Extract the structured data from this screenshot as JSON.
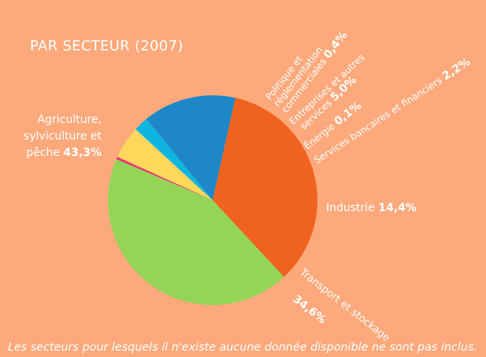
{
  "chart_data": {
    "type": "pie",
    "title": "PAR SECTEUR (2007)",
    "footnote": "Les secteurs pour lesquels il n'existe aucune donnée disponible ne sont pas inclus.",
    "slices": [
      {
        "name": "Politique et réglementation commerciales",
        "value": 0.4,
        "value_label": "0,4%",
        "color": "#e8337a"
      },
      {
        "name": "Entreprises et autres services",
        "value": 5.0,
        "value_label": "5,0%",
        "color": "#fed75b"
      },
      {
        "name": "Énergie",
        "value": 0.1,
        "value_label": "0,1%",
        "color": "#6ad2ee"
      },
      {
        "name": "Services bancaires et financiers",
        "value": 2.2,
        "value_label": "2,2%",
        "color": "#0eb6df"
      },
      {
        "name": "Industrie",
        "value": 14.4,
        "value_label": "14,4%",
        "color": "#1e87c8"
      },
      {
        "name": "Transport et stockage",
        "value": 34.6,
        "value_label": "34,6%",
        "color": "#f0631f"
      },
      {
        "name": "Agriculture, sylviculture et pêche",
        "value": 43.3,
        "value_label": "43,3%",
        "color": "#94d557"
      }
    ]
  },
  "labels": {
    "agri_line1": "Agriculture,",
    "agri_line2": "sylviculture et",
    "agri_line3": "pêche",
    "industrie": "Industrie",
    "transport": "Transport et stockage",
    "politique_line1": "Politique et",
    "politique_line2": "réglementation",
    "politique_line3": "commerciales",
    "entreprises_line1": "Entreprises et autres",
    "entreprises_line2": "services",
    "energie": "Énergie",
    "services_bancaires": "Services bancaires et financiers"
  },
  "colors": {
    "background": "#fea97c",
    "text": "#ffffff"
  }
}
